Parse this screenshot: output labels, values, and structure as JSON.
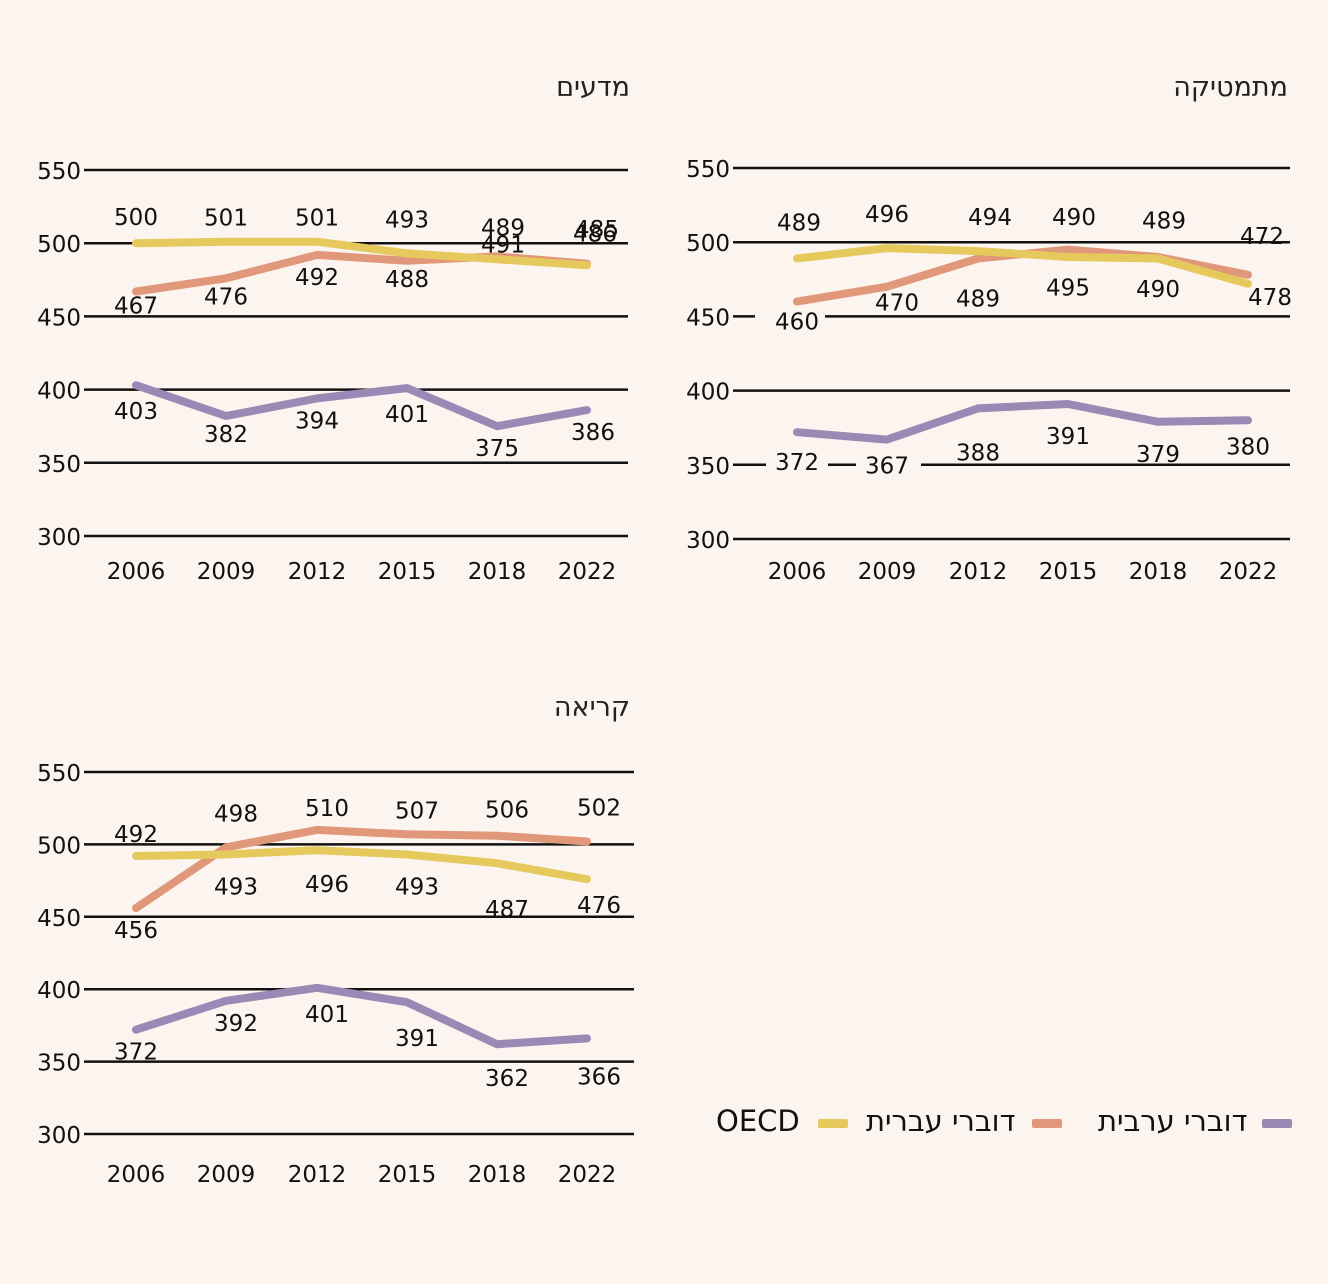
{
  "colors": {
    "background": "#fcf4ee",
    "oecd": "#e6c95c",
    "hebrew": "#e0977a",
    "arabic": "#9b88b4",
    "axis": "#111111"
  },
  "legend": [
    {
      "key": "oecd",
      "label": "OECD"
    },
    {
      "key": "hebrew",
      "label": "דוברי עברית"
    },
    {
      "key": "arabic",
      "label": "דוברי ערבית"
    }
  ],
  "chart_data": [
    {
      "id": "math",
      "type": "line",
      "title": "מתמטיקה",
      "x": [
        "2006",
        "2009",
        "2012",
        "2015",
        "2018",
        "2022"
      ],
      "yticks": [
        300,
        350,
        400,
        450,
        500,
        550
      ],
      "ylim": [
        300,
        550
      ],
      "grid": true,
      "series": [
        {
          "key": "oecd",
          "name": "OECD",
          "values": [
            489,
            496,
            494,
            490,
            489,
            472
          ]
        },
        {
          "key": "hebrew",
          "name": "דוברי עברית",
          "values": [
            460,
            470,
            489,
            495,
            490,
            478
          ]
        },
        {
          "key": "arabic",
          "name": "דוברי ערבית",
          "values": [
            372,
            367,
            388,
            391,
            379,
            380
          ]
        }
      ]
    },
    {
      "id": "science",
      "type": "line",
      "title": "מדעים",
      "x": [
        "2006",
        "2009",
        "2012",
        "2015",
        "2018",
        "2022"
      ],
      "yticks": [
        300,
        350,
        400,
        450,
        500,
        550
      ],
      "ylim": [
        300,
        550
      ],
      "grid": true,
      "series": [
        {
          "key": "oecd",
          "name": "OECD",
          "values": [
            500,
            501,
            501,
            493,
            489,
            485
          ]
        },
        {
          "key": "hebrew",
          "name": "דוברי עברית",
          "values": [
            467,
            476,
            492,
            488,
            491,
            486
          ]
        },
        {
          "key": "arabic",
          "name": "דוברי ערבית",
          "values": [
            403,
            382,
            394,
            401,
            375,
            386
          ]
        }
      ]
    },
    {
      "id": "reading",
      "type": "line",
      "title": "קריאה",
      "x": [
        "2006",
        "2009",
        "2012",
        "2015",
        "2018",
        "2022"
      ],
      "yticks": [
        300,
        350,
        400,
        450,
        500,
        550
      ],
      "ylim": [
        300,
        550
      ],
      "grid": true,
      "series": [
        {
          "key": "oecd",
          "name": "OECD",
          "values": [
            492,
            493,
            496,
            493,
            487,
            476
          ]
        },
        {
          "key": "hebrew",
          "name": "דוברי עברית",
          "values": [
            456,
            498,
            510,
            507,
            506,
            502
          ]
        },
        {
          "key": "arabic",
          "name": "דוברי ערבית",
          "values": [
            372,
            392,
            401,
            391,
            362,
            366
          ]
        }
      ]
    }
  ]
}
